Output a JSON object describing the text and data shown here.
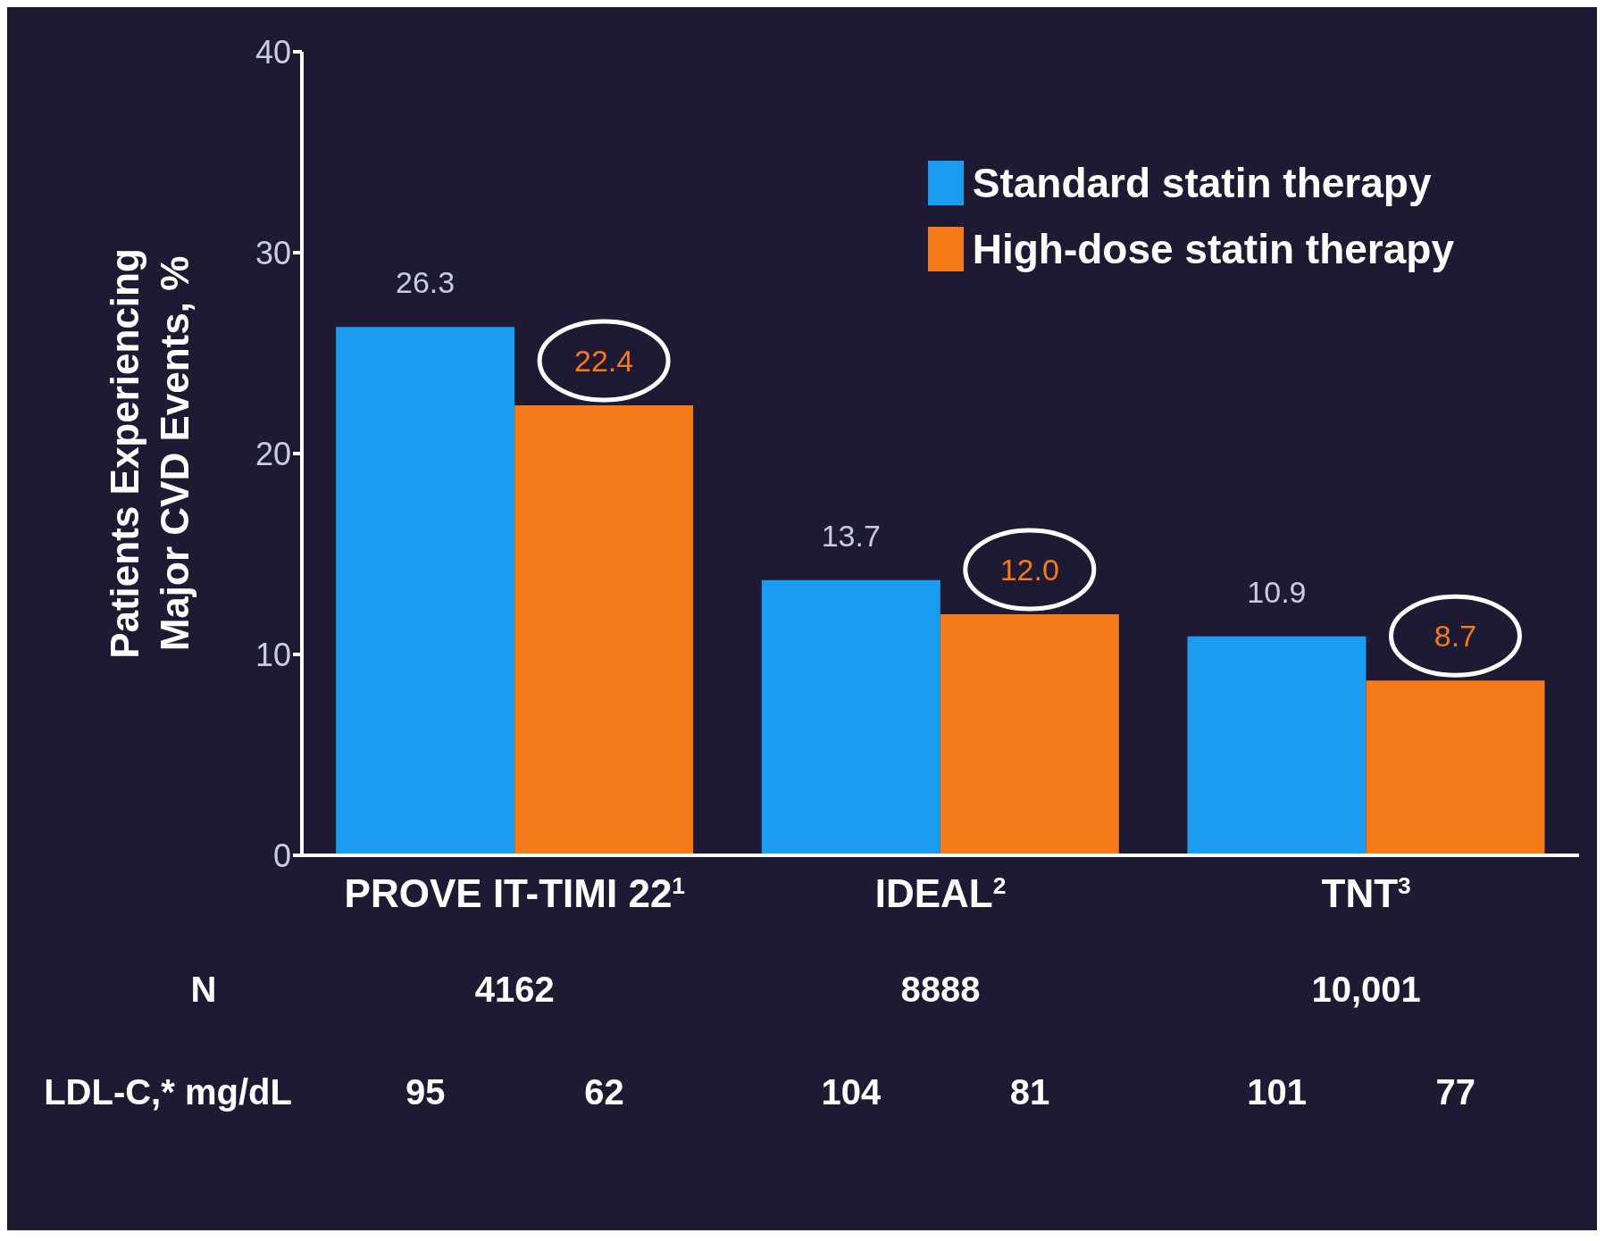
{
  "chart_data": {
    "type": "bar",
    "ylabel": "Patients Experiencing Major CVD Events, %",
    "categories": [
      "PROVE IT-TIMI 22$^{1}$",
      "IDEAL$^{2}$",
      "TNT$^{3}$"
    ],
    "series": [
      {
        "name": "Standard statin therapy",
        "color": "#1a9cf0",
        "values": [
          26.3,
          13.7,
          10.9
        ],
        "value_labels": [
          "26.3",
          "13.7",
          "10.9"
        ]
      },
      {
        "name": "High-dose statin therapy",
        "color": "#f47a1a",
        "values": [
          22.4,
          12.0,
          8.7
        ],
        "value_labels": [
          "22.4",
          "12.0",
          "8.7"
        ]
      }
    ],
    "ylim": [
      0,
      40
    ],
    "yticks": [
      0,
      10,
      20,
      30,
      40
    ],
    "legend": "top right",
    "annotations": [
      "N",
      "4162",
      "8888",
      "10,001",
      "LDL-C,* mg/dL",
      "95",
      "62",
      "104",
      "81",
      "101",
      "77"
    ]
  }
}
